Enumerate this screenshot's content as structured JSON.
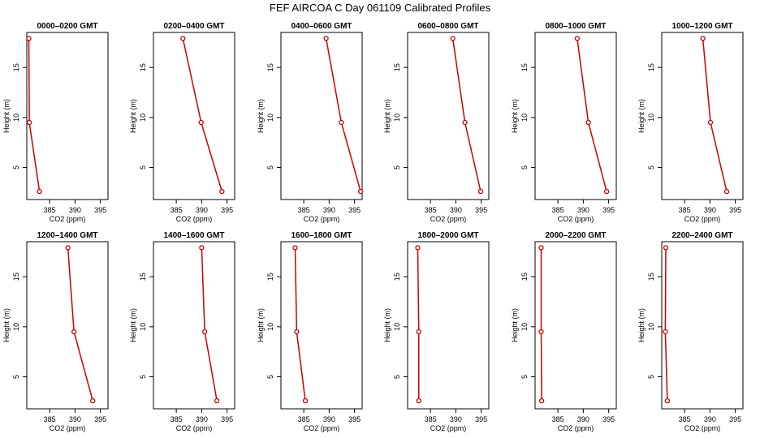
{
  "figure_title": "FEF AIRCOA C  Day 061109  Calibrated Profiles",
  "chart_data": {
    "type": "line",
    "title": "FEF AIRCOA C  Day 061109  Calibrated Profiles",
    "xlabel": "CO2 (ppm)",
    "ylabel": "Height (m)",
    "xlim": [
      380.5,
      396.5
    ],
    "ylim": [
      1.8,
      18.5
    ],
    "xticks": [
      385,
      390,
      395
    ],
    "yticks": [
      5,
      10,
      15
    ],
    "heights": [
      17.9,
      9.5,
      2.6
    ],
    "line_color": "#cc0000",
    "panels": [
      {
        "title": "0000–0200 GMT",
        "co2": [
          380.9,
          381.0,
          383.0
        ]
      },
      {
        "title": "0200–0400 GMT",
        "co2": [
          386.3,
          389.9,
          394.0
        ]
      },
      {
        "title": "0400–0600 GMT",
        "co2": [
          389.4,
          392.4,
          396.2
        ]
      },
      {
        "title": "0600–0800 GMT",
        "co2": [
          389.4,
          391.8,
          394.9
        ]
      },
      {
        "title": "0800–1000 GMT",
        "co2": [
          388.8,
          391.0,
          394.6
        ]
      },
      {
        "title": "1000–1200 GMT",
        "co2": [
          388.6,
          390.1,
          393.3
        ]
      },
      {
        "title": "1200–1400 GMT",
        "co2": [
          388.6,
          389.8,
          393.5
        ]
      },
      {
        "title": "1400–1600 GMT",
        "co2": [
          390.0,
          390.6,
          393.0
        ]
      },
      {
        "title": "1600–1800 GMT",
        "co2": [
          383.3,
          383.6,
          385.3
        ]
      },
      {
        "title": "1800–2000 GMT",
        "co2": [
          382.5,
          382.7,
          382.7
        ]
      },
      {
        "title": "2000–2200 GMT",
        "co2": [
          381.7,
          381.7,
          381.8
        ]
      },
      {
        "title": "2200–2400 GMT",
        "co2": [
          381.3,
          381.2,
          381.6
        ]
      }
    ]
  }
}
